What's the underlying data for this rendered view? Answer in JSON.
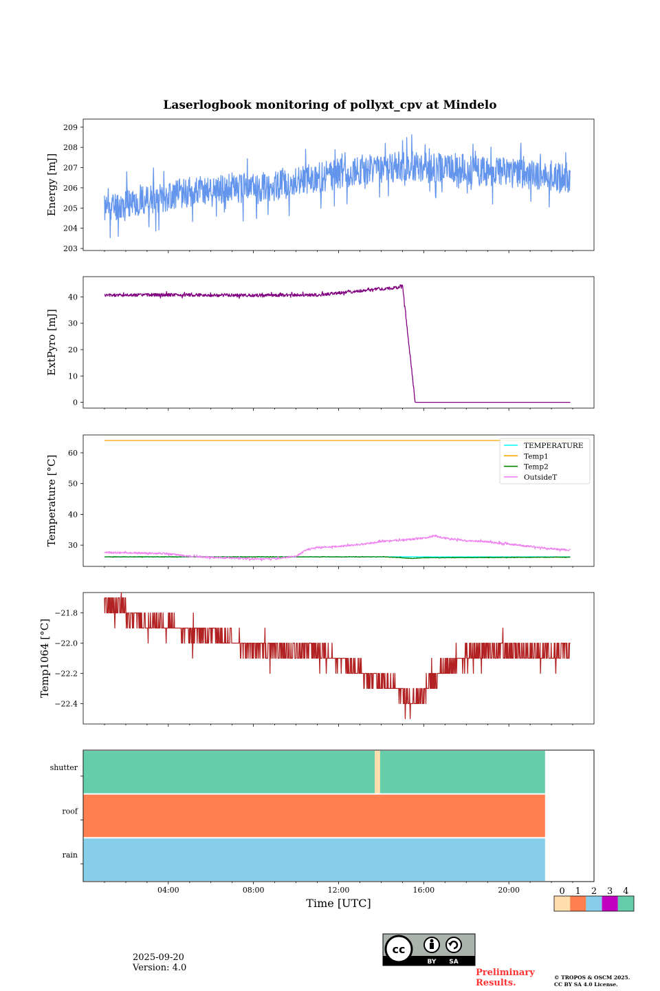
{
  "title": "Laserlogbook monitoring of pollyxt_cpv at Mindelo",
  "chart_data": [
    {
      "type": "line",
      "ylabel": "Energy [mJ]",
      "ylim": [
        202.9,
        209.4
      ],
      "yticks": [
        "203",
        "204",
        "205",
        "206",
        "207",
        "208",
        "209"
      ],
      "series": [
        {
          "name": "Energy",
          "color": "#6495ed",
          "noise": 0.75,
          "seed": 11,
          "x": [
            1.0,
            2.0,
            3.0,
            4.0,
            5.0,
            6.0,
            7.0,
            8.0,
            9.0,
            10.0,
            11.0,
            12.0,
            13.0,
            14.0,
            15.0,
            16.0,
            17.0,
            18.0,
            19.0,
            20.0,
            21.0,
            22.0,
            22.9
          ],
          "y": [
            205.0,
            205.2,
            205.4,
            205.6,
            205.8,
            205.9,
            206.0,
            206.0,
            206.1,
            206.3,
            206.5,
            206.7,
            206.9,
            206.9,
            207.1,
            207.0,
            207.0,
            206.9,
            206.8,
            206.8,
            206.6,
            206.6,
            206.5
          ]
        }
      ]
    },
    {
      "type": "line",
      "ylabel": "ExtPyro [mJ]",
      "ylim": [
        -2.2,
        47.7
      ],
      "yticks": [
        "0",
        "10",
        "20",
        "30",
        "40"
      ],
      "series": [
        {
          "name": "ExtPyro",
          "color": "#800080",
          "noise": 0.6,
          "seed": 5,
          "x": [
            1.0,
            3.0,
            6.0,
            9.0,
            11.0,
            12.0,
            13.0,
            14.0,
            14.8,
            15.0,
            15.6,
            22.9
          ],
          "y": [
            40.6,
            40.8,
            40.7,
            40.6,
            40.8,
            41.5,
            42.3,
            43.0,
            43.5,
            44.5,
            0.0,
            0.0
          ]
        }
      ]
    },
    {
      "type": "line",
      "ylabel": "Temperature [°C]",
      "ylim": [
        23.1,
        65.8
      ],
      "yticks": [
        "30",
        "40",
        "50",
        "60"
      ],
      "legend": [
        "TEMPERATURE",
        "Temp1",
        "Temp2",
        "OutsideT"
      ],
      "legend_position": "top-right",
      "series": [
        {
          "name": "TEMPERATURE",
          "color": "#00ffff",
          "noise": 0.05,
          "seed": 3,
          "x": [
            1.0,
            22.9
          ],
          "y": [
            26.2,
            26.2
          ]
        },
        {
          "name": "Temp1",
          "color": "#ffa500",
          "noise": 0.0,
          "seed": 1,
          "x": [
            1.0,
            22.9
          ],
          "y": [
            64.0,
            64.0
          ]
        },
        {
          "name": "Temp2",
          "color": "#008000",
          "noise": 0.08,
          "seed": 4,
          "x": [
            1.0,
            14.0,
            14.8,
            15.4,
            16.0,
            22.9
          ],
          "y": [
            26.2,
            26.2,
            26.0,
            25.7,
            25.9,
            26.1
          ]
        },
        {
          "name": "OutsideT",
          "color": "#ee82ee",
          "noise": 0.3,
          "seed": 9,
          "x": [
            1.0,
            3.0,
            4.0,
            5.0,
            7.0,
            8.0,
            9.0,
            10.0,
            10.5,
            11.0,
            12.0,
            13.0,
            14.0,
            15.0,
            16.0,
            16.5,
            17.0,
            18.0,
            19.0,
            20.0,
            21.0,
            22.0,
            22.9
          ],
          "y": [
            27.6,
            27.4,
            27.2,
            26.3,
            25.8,
            25.5,
            25.6,
            26.4,
            28.5,
            29.3,
            29.6,
            30.2,
            31.2,
            31.6,
            32.3,
            33.0,
            32.3,
            31.4,
            31.1,
            30.3,
            29.6,
            28.8,
            28.4
          ]
        }
      ]
    },
    {
      "type": "line",
      "ylabel": "Temp1064 [°C]",
      "ylim": [
        -22.535,
        -21.665
      ],
      "yticks": [
        "−21.8",
        "−22.0",
        "−22.2",
        "−22.4"
      ],
      "series": [
        {
          "name": "Temp1064",
          "color": "#b22222",
          "quantize": 0.1,
          "noise": 0.06,
          "seed": 7,
          "x": [
            1.0,
            1.8,
            2.5,
            3.0,
            4.0,
            5.0,
            6.0,
            7.0,
            8.0,
            9.0,
            10.0,
            11.0,
            12.0,
            13.0,
            14.0,
            15.0,
            15.4,
            16.0,
            17.0,
            18.0,
            19.0,
            20.0,
            21.0,
            22.0,
            22.9
          ],
          "y": [
            -21.73,
            -21.77,
            -21.84,
            -21.87,
            -21.88,
            -21.92,
            -21.93,
            -22.0,
            -22.03,
            -22.04,
            -22.05,
            -22.05,
            -22.1,
            -22.18,
            -22.26,
            -22.32,
            -22.41,
            -22.32,
            -22.16,
            -22.09,
            -22.06,
            -22.05,
            -22.07,
            -22.09,
            -22.02
          ]
        }
      ]
    },
    {
      "type": "heatmap",
      "xlabel": "Time [UTC]",
      "xlim": [
        0,
        24
      ],
      "xticks": [
        "04:00",
        "08:00",
        "12:00",
        "16:00",
        "20:00"
      ],
      "rows": [
        "shutter",
        "roof",
        "rain"
      ],
      "segments": {
        "shutter": [
          {
            "from": 0.0,
            "to": 13.7,
            "level": 4
          },
          {
            "from": 13.7,
            "to": 13.95,
            "level": 0
          },
          {
            "from": 13.95,
            "to": 21.7,
            "level": 4
          }
        ],
        "roof": [
          {
            "from": 0.0,
            "to": 21.7,
            "level": 1
          }
        ],
        "rain": [
          {
            "from": 0.0,
            "to": 21.7,
            "level": 2
          }
        ]
      },
      "colorbar": {
        "labels": [
          "0",
          "1",
          "2",
          "3",
          "4"
        ],
        "colors": [
          "#ffdead",
          "#ff7f50",
          "#87ceeb",
          "#c000c0",
          "#66cdaa"
        ]
      }
    }
  ],
  "footer": {
    "date": "2025-09-20",
    "version": "Version: 4.0",
    "preliminary_line1": "Preliminary",
    "preliminary_line2": "Results.",
    "copyright_line1": "© TROPOS & OSCM 2025.",
    "copyright_line2": "CC BY SA 4.0 License.",
    "cc_badge_text": [
      "cc",
      "BY",
      "SA"
    ]
  }
}
